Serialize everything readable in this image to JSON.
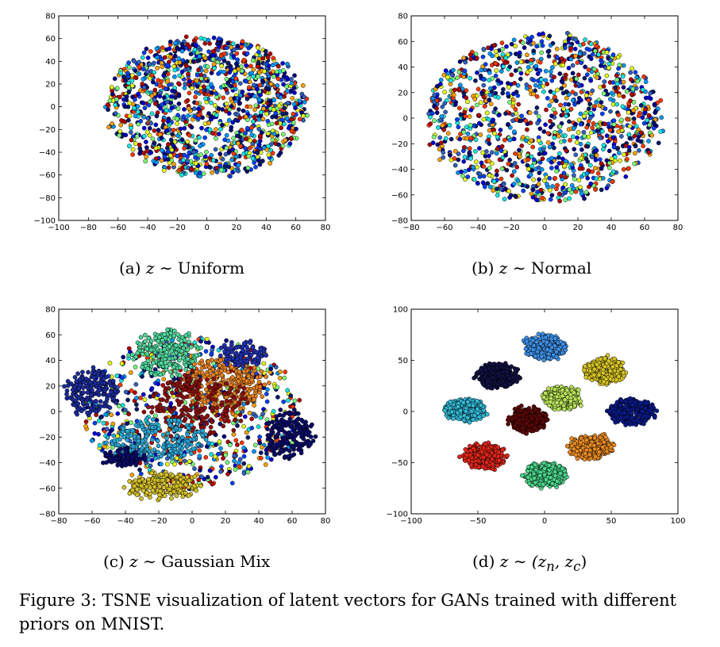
{
  "chart_data": [
    {
      "id": "a",
      "type": "scatter",
      "caption": {
        "letter": "(a)",
        "var": "z",
        "rel": "∼",
        "text": "Uniform"
      },
      "xlim": [
        -100,
        80
      ],
      "ylim": [
        -100,
        80
      ],
      "xticks": [
        -100,
        -80,
        -60,
        -40,
        -20,
        0,
        20,
        40,
        60,
        80
      ],
      "yticks": [
        -100,
        -80,
        -60,
        -40,
        -20,
        0,
        20,
        40,
        60,
        80
      ],
      "clusters": [
        {
          "cx": 0,
          "cy": 0,
          "rx": 68,
          "ry": 62,
          "n": 1400,
          "color": "mixed"
        }
      ]
    },
    {
      "id": "b",
      "type": "scatter",
      "caption": {
        "letter": "(b)",
        "var": "z",
        "rel": "∼",
        "text": "Normal"
      },
      "xlim": [
        -80,
        80
      ],
      "ylim": [
        -80,
        80
      ],
      "xticks": [
        -80,
        -60,
        -40,
        -20,
        0,
        20,
        40,
        60,
        80
      ],
      "yticks": [
        -80,
        -60,
        -40,
        -20,
        0,
        20,
        40,
        60,
        80
      ],
      "clusters": [
        {
          "cx": 0,
          "cy": 0,
          "rx": 70,
          "ry": 66,
          "n": 1300,
          "color": "mixed"
        }
      ]
    },
    {
      "id": "c",
      "type": "scatter",
      "caption": {
        "letter": "(c)",
        "var": "z",
        "rel": "∼",
        "text": "Gaussian Mix"
      },
      "xlim": [
        -80,
        80
      ],
      "ylim": [
        -80,
        80
      ],
      "xticks": [
        -80,
        -60,
        -40,
        -20,
        0,
        20,
        40,
        60,
        80
      ],
      "yticks": [
        -80,
        -60,
        -40,
        -20,
        0,
        20,
        40,
        60,
        80
      ],
      "clusters": [
        {
          "cx": 0,
          "cy": 0,
          "rx": 66,
          "ry": 58,
          "n": 700,
          "color": "mixed"
        },
        {
          "cx": -15,
          "cy": 45,
          "rx": 20,
          "ry": 18,
          "n": 220,
          "color": "#4fd59a"
        },
        {
          "cx": -60,
          "cy": 15,
          "rx": 16,
          "ry": 18,
          "n": 200,
          "color": "#1a2a9a"
        },
        {
          "cx": 20,
          "cy": 22,
          "rx": 24,
          "ry": 22,
          "n": 260,
          "color": "#e5801f"
        },
        {
          "cx": 5,
          "cy": 5,
          "rx": 30,
          "ry": 25,
          "n": 220,
          "color": "#8b1010"
        },
        {
          "cx": 58,
          "cy": -18,
          "rx": 14,
          "ry": 20,
          "n": 180,
          "color": "#0a0a6a"
        },
        {
          "cx": -18,
          "cy": -58,
          "rx": 22,
          "ry": 10,
          "n": 220,
          "color": "#d4c02a"
        },
        {
          "cx": -20,
          "cy": -22,
          "rx": 30,
          "ry": 16,
          "n": 220,
          "color": "#2aa4d4"
        },
        {
          "cx": -40,
          "cy": -35,
          "rx": 12,
          "ry": 8,
          "n": 80,
          "color": "#0a0a6a"
        },
        {
          "cx": 30,
          "cy": 45,
          "rx": 14,
          "ry": 10,
          "n": 100,
          "color": "#2030b0"
        }
      ]
    },
    {
      "id": "d",
      "type": "scatter",
      "caption": {
        "letter": "(d)",
        "var": "z",
        "rel": "∼",
        "text": "(z",
        "sub_n": "n",
        "comma": ", z",
        "sub_c": "c",
        "close": ")"
      },
      "xlim": [
        -100,
        100
      ],
      "ylim": [
        -100,
        100
      ],
      "xticks": [
        -100,
        -50,
        0,
        50,
        100
      ],
      "yticks": [
        -100,
        -50,
        0,
        50,
        100
      ],
      "clusters": [
        {
          "cx": 0,
          "cy": 63,
          "rx": 15,
          "ry": 12,
          "n": 300,
          "color": "#3d8fe6"
        },
        {
          "cx": -35,
          "cy": 35,
          "rx": 15,
          "ry": 12,
          "n": 300,
          "color": "#111144"
        },
        {
          "cx": 45,
          "cy": 40,
          "rx": 15,
          "ry": 12,
          "n": 300,
          "color": "#d8c524"
        },
        {
          "cx": 13,
          "cy": 13,
          "rx": 14,
          "ry": 11,
          "n": 300,
          "color": "#b9e45a"
        },
        {
          "cx": -60,
          "cy": 1,
          "rx": 15,
          "ry": 11,
          "n": 300,
          "color": "#33b8d6"
        },
        {
          "cx": 65,
          "cy": 0,
          "rx": 18,
          "ry": 12,
          "n": 300,
          "color": "#0a1a8a"
        },
        {
          "cx": -12,
          "cy": -8,
          "rx": 14,
          "ry": 12,
          "n": 300,
          "color": "#5e0808"
        },
        {
          "cx": -45,
          "cy": -44,
          "rx": 16,
          "ry": 12,
          "n": 300,
          "color": "#e0261a"
        },
        {
          "cx": 35,
          "cy": -35,
          "rx": 16,
          "ry": 12,
          "n": 300,
          "color": "#e88a22"
        },
        {
          "cx": 0,
          "cy": -62,
          "rx": 16,
          "ry": 12,
          "n": 300,
          "color": "#4ad48a"
        }
      ]
    }
  ],
  "figure_caption": "Figure 3: TSNE visualization of latent vectors for GANs trained with different priors on MNIST.",
  "palette_mixed": [
    "#00007f",
    "#0000d5",
    "#0040ff",
    "#0098ff",
    "#16e8e0",
    "#7cff79",
    "#e6ff18",
    "#ffa300",
    "#ff3800",
    "#b20000",
    "#001a6a",
    "#3060c0"
  ]
}
